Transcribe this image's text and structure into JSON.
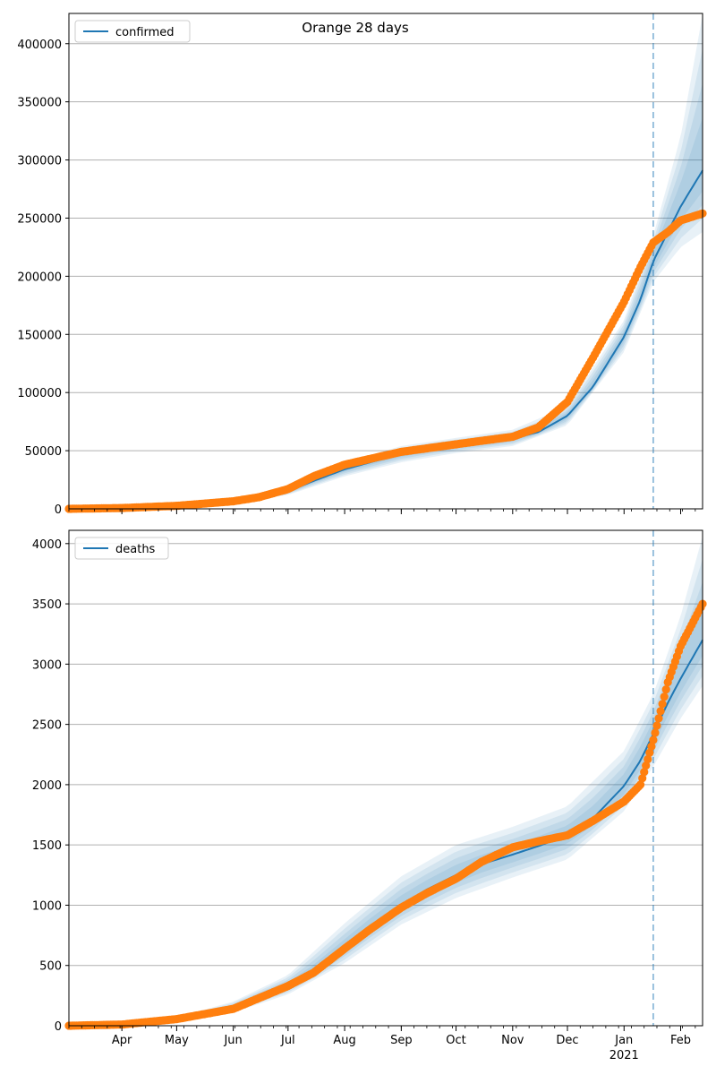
{
  "title": "Orange 28 days",
  "colors": {
    "model": "#1f77b4",
    "observed": "#ff7f0e",
    "band": "#1f77b4",
    "grid": "#b0b0b0",
    "forecast_line": "#1f77b4"
  },
  "x_axis": {
    "labels": [
      {
        "date": "2020-04-01",
        "label": "Apr"
      },
      {
        "date": "2020-05-01",
        "label": "May"
      },
      {
        "date": "2020-06-01",
        "label": "Jun"
      },
      {
        "date": "2020-07-01",
        "label": "Jul"
      },
      {
        "date": "2020-08-01",
        "label": "Aug"
      },
      {
        "date": "2020-09-01",
        "label": "Sep"
      },
      {
        "date": "2020-10-01",
        "label": "Oct"
      },
      {
        "date": "2020-11-01",
        "label": "Nov"
      },
      {
        "date": "2020-12-01",
        "label": "Dec"
      },
      {
        "date": "2021-01-01",
        "label": "Jan"
      },
      {
        "date": "2021-02-01",
        "label": "Feb"
      }
    ],
    "year_label": "2021",
    "year_label_date": "2021-01-01"
  },
  "chart_data": [
    {
      "type": "line",
      "legend": "confirmed",
      "legend_position": "top-left",
      "grid": "y",
      "xlim": [
        "2020-03-03",
        "2021-02-13"
      ],
      "ylim": [
        0,
        426000
      ],
      "yticks": [
        0,
        50000,
        100000,
        150000,
        200000,
        250000,
        300000,
        350000,
        400000
      ],
      "forecast_start": "2021-01-17",
      "model": [
        {
          "x": "2020-03-03",
          "y": 0
        },
        {
          "x": "2020-04-01",
          "y": 800
        },
        {
          "x": "2020-05-01",
          "y": 2500
        },
        {
          "x": "2020-06-01",
          "y": 6500
        },
        {
          "x": "2020-06-15",
          "y": 9500
        },
        {
          "x": "2020-07-01",
          "y": 15000
        },
        {
          "x": "2020-07-15",
          "y": 24000
        },
        {
          "x": "2020-08-01",
          "y": 34000
        },
        {
          "x": "2020-08-15",
          "y": 40000
        },
        {
          "x": "2020-09-01",
          "y": 47000
        },
        {
          "x": "2020-09-15",
          "y": 51000
        },
        {
          "x": "2020-10-01",
          "y": 54500
        },
        {
          "x": "2020-10-15",
          "y": 57000
        },
        {
          "x": "2020-11-01",
          "y": 60500
        },
        {
          "x": "2020-11-15",
          "y": 66000
        },
        {
          "x": "2020-12-01",
          "y": 80000
        },
        {
          "x": "2020-12-15",
          "y": 105000
        },
        {
          "x": "2021-01-01",
          "y": 148000
        },
        {
          "x": "2021-01-10",
          "y": 180000
        },
        {
          "x": "2021-01-17",
          "y": 213000
        },
        {
          "x": "2021-01-25",
          "y": 238000
        },
        {
          "x": "2021-02-01",
          "y": 260000
        },
        {
          "x": "2021-02-13",
          "y": 291000
        }
      ],
      "bands": [
        {
          "date": "2020-03-03",
          "lo": 0,
          "hi": 0
        },
        {
          "date": "2020-06-01",
          "lo": 4500,
          "hi": 8500
        },
        {
          "date": "2020-07-01",
          "lo": 12000,
          "hi": 18000
        },
        {
          "date": "2020-08-01",
          "lo": 28000,
          "hi": 40000
        },
        {
          "date": "2020-09-01",
          "lo": 40000,
          "hi": 54000
        },
        {
          "date": "2020-10-01",
          "lo": 48000,
          "hi": 61000
        },
        {
          "date": "2020-11-01",
          "lo": 54000,
          "hi": 68000
        },
        {
          "date": "2020-12-01",
          "lo": 72000,
          "hi": 88000
        },
        {
          "date": "2021-01-01",
          "lo": 135000,
          "hi": 162000
        },
        {
          "date": "2021-01-17",
          "lo": 195000,
          "hi": 235000
        },
        {
          "date": "2021-02-01",
          "lo": 225000,
          "hi": 320000
        },
        {
          "date": "2021-02-13",
          "lo": 238000,
          "hi": 425000
        }
      ],
      "observed": [
        {
          "x": "2020-03-03",
          "y": 0
        },
        {
          "x": "2020-04-01",
          "y": 700
        },
        {
          "x": "2020-05-01",
          "y": 2600
        },
        {
          "x": "2020-06-01",
          "y": 6500
        },
        {
          "x": "2020-06-15",
          "y": 10000
        },
        {
          "x": "2020-07-01",
          "y": 17000
        },
        {
          "x": "2020-07-15",
          "y": 28000
        },
        {
          "x": "2020-08-01",
          "y": 38000
        },
        {
          "x": "2020-08-15",
          "y": 43000
        },
        {
          "x": "2020-09-01",
          "y": 49000
        },
        {
          "x": "2020-09-15",
          "y": 52000
        },
        {
          "x": "2020-10-01",
          "y": 55500
        },
        {
          "x": "2020-10-15",
          "y": 58500
        },
        {
          "x": "2020-11-01",
          "y": 62000
        },
        {
          "x": "2020-11-15",
          "y": 70000
        },
        {
          "x": "2020-12-01",
          "y": 92000
        },
        {
          "x": "2020-12-15",
          "y": 130000
        },
        {
          "x": "2021-01-01",
          "y": 178000
        },
        {
          "x": "2021-01-10",
          "y": 208000
        },
        {
          "x": "2021-01-17",
          "y": 229000
        },
        {
          "x": "2021-01-25",
          "y": 238000
        },
        {
          "x": "2021-02-01",
          "y": 248000
        },
        {
          "x": "2021-02-13",
          "y": 254000
        }
      ]
    },
    {
      "type": "line",
      "legend": "deaths",
      "legend_position": "top-left",
      "grid": "y",
      "xlim": [
        "2020-03-03",
        "2021-02-13"
      ],
      "ylim": [
        0,
        4110
      ],
      "yticks": [
        0,
        500,
        1000,
        1500,
        2000,
        2500,
        3000,
        3500,
        4000
      ],
      "forecast_start": "2021-01-17",
      "model": [
        {
          "x": "2020-03-03",
          "y": 0
        },
        {
          "x": "2020-04-01",
          "y": 8
        },
        {
          "x": "2020-05-01",
          "y": 50
        },
        {
          "x": "2020-06-01",
          "y": 150
        },
        {
          "x": "2020-07-01",
          "y": 330
        },
        {
          "x": "2020-07-15",
          "y": 450
        },
        {
          "x": "2020-08-01",
          "y": 650
        },
        {
          "x": "2020-08-15",
          "y": 820
        },
        {
          "x": "2020-09-01",
          "y": 1000
        },
        {
          "x": "2020-09-15",
          "y": 1130
        },
        {
          "x": "2020-10-01",
          "y": 1250
        },
        {
          "x": "2020-10-15",
          "y": 1340
        },
        {
          "x": "2020-11-01",
          "y": 1420
        },
        {
          "x": "2020-11-15",
          "y": 1490
        },
        {
          "x": "2020-12-01",
          "y": 1580
        },
        {
          "x": "2020-12-15",
          "y": 1720
        },
        {
          "x": "2021-01-01",
          "y": 1990
        },
        {
          "x": "2021-01-10",
          "y": 2200
        },
        {
          "x": "2021-01-17",
          "y": 2420
        },
        {
          "x": "2021-01-25",
          "y": 2680
        },
        {
          "x": "2021-02-01",
          "y": 2880
        },
        {
          "x": "2021-02-13",
          "y": 3200
        }
      ],
      "bands": [
        {
          "date": "2020-03-03",
          "lo": 0,
          "hi": 0
        },
        {
          "date": "2020-05-01",
          "lo": 30,
          "hi": 70
        },
        {
          "date": "2020-06-01",
          "lo": 110,
          "hi": 200
        },
        {
          "date": "2020-07-01",
          "lo": 260,
          "hi": 420
        },
        {
          "date": "2020-08-01",
          "lo": 520,
          "hi": 850
        },
        {
          "date": "2020-09-01",
          "lo": 840,
          "hi": 1240
        },
        {
          "date": "2020-10-01",
          "lo": 1060,
          "hi": 1500
        },
        {
          "date": "2020-11-01",
          "lo": 1230,
          "hi": 1650
        },
        {
          "date": "2020-12-01",
          "lo": 1380,
          "hi": 1820
        },
        {
          "date": "2021-01-01",
          "lo": 1780,
          "hi": 2280
        },
        {
          "date": "2021-01-17",
          "lo": 2150,
          "hi": 2750
        },
        {
          "date": "2021-02-01",
          "lo": 2550,
          "hi": 3400
        },
        {
          "date": "2021-02-13",
          "lo": 2820,
          "hi": 4060
        }
      ],
      "observed": [
        {
          "x": "2020-03-03",
          "y": 0
        },
        {
          "x": "2020-04-01",
          "y": 10
        },
        {
          "x": "2020-05-01",
          "y": 55
        },
        {
          "x": "2020-06-01",
          "y": 140
        },
        {
          "x": "2020-07-01",
          "y": 330
        },
        {
          "x": "2020-07-15",
          "y": 440
        },
        {
          "x": "2020-08-01",
          "y": 640
        },
        {
          "x": "2020-08-15",
          "y": 800
        },
        {
          "x": "2020-09-01",
          "y": 980
        },
        {
          "x": "2020-09-15",
          "y": 1100
        },
        {
          "x": "2020-10-01",
          "y": 1220
        },
        {
          "x": "2020-10-15",
          "y": 1360
        },
        {
          "x": "2020-11-01",
          "y": 1480
        },
        {
          "x": "2020-11-15",
          "y": 1530
        },
        {
          "x": "2020-12-01",
          "y": 1580
        },
        {
          "x": "2020-12-15",
          "y": 1700
        },
        {
          "x": "2021-01-01",
          "y": 1860
        },
        {
          "x": "2021-01-10",
          "y": 2000
        },
        {
          "x": "2021-01-17",
          "y": 2370
        },
        {
          "x": "2021-01-25",
          "y": 2850
        },
        {
          "x": "2021-02-01",
          "y": 3150
        },
        {
          "x": "2021-02-13",
          "y": 3500
        }
      ]
    }
  ]
}
